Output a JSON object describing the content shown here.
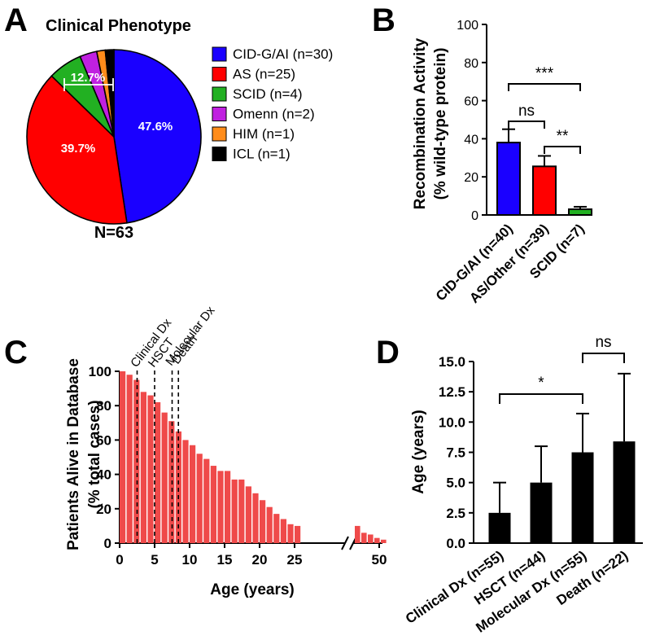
{
  "panel_labels": [
    "A",
    "B",
    "C",
    "D"
  ],
  "chart_data": [
    {
      "panel": "A",
      "type": "pie",
      "title": "Clinical Phenotype",
      "total_label": "N=63",
      "slices": [
        {
          "label": "CID-G/AI (n=30)",
          "value": 30,
          "color": "#1a00ff",
          "pct_label": "47.6%"
        },
        {
          "label": "AS (n=25)",
          "value": 25,
          "color": "#ff0000",
          "pct_label": "39.7%"
        },
        {
          "label": "SCID (n=4)",
          "value": 4,
          "color": "#22b022",
          "pct_label": "12.7%"
        },
        {
          "label": "Omenn (n=2)",
          "value": 2,
          "color": "#c020e0",
          "pct_label": ""
        },
        {
          "label": "HIM (n=1)",
          "value": 1,
          "color": "#ff8c1a",
          "pct_label": ""
        },
        {
          "label": "ICL (n=1)",
          "value": 1,
          "color": "#000000",
          "pct_label": ""
        }
      ]
    },
    {
      "panel": "B",
      "type": "bar",
      "ylabel_line1": "Recombination Activity",
      "ylabel_line2": "(% wild-type protein)",
      "ylim": [
        0,
        100
      ],
      "yticks": [
        0,
        20,
        40,
        60,
        80,
        100
      ],
      "categories": [
        "CID-G/AI (n=40)",
        "AS/Other (n=39)",
        "SCID (n=7)"
      ],
      "values": [
        38,
        25.5,
        3
      ],
      "errors": [
        7,
        5.5,
        1.3
      ],
      "colors": [
        "#1a00ff",
        "#ff0000",
        "#22b022"
      ],
      "significance": [
        {
          "from": 0,
          "to": 1,
          "label": "ns"
        },
        {
          "from": 1,
          "to": 2,
          "label": "**"
        },
        {
          "from": 0,
          "to": 2,
          "label": "***"
        }
      ]
    },
    {
      "panel": "C",
      "type": "bar",
      "ylabel_line1": "Patients Alive in Database",
      "ylabel_line2": "(% total cases)",
      "xlabel": "Age (years)",
      "ylim": [
        0,
        100
      ],
      "yticks": [
        0,
        20,
        40,
        60,
        80,
        100
      ],
      "xticks": [
        "0",
        "5",
        "10",
        "15",
        "20",
        "25",
        "50"
      ],
      "bar_color": "#ef4a4a",
      "x": [
        0,
        1,
        2,
        3,
        4,
        5,
        6,
        7,
        8,
        9,
        10,
        11,
        12,
        13,
        14,
        15,
        16,
        17,
        18,
        19,
        20,
        21,
        22,
        23,
        24,
        25,
        45,
        46,
        47,
        48,
        49
      ],
      "values": [
        100,
        98,
        95,
        88,
        86,
        82,
        76,
        71,
        65,
        60,
        57,
        52,
        49,
        45,
        42,
        42,
        37,
        37,
        33,
        29,
        25,
        21,
        17,
        14,
        11,
        10,
        10,
        6,
        5,
        3,
        2
      ],
      "events": [
        {
          "label": "Clinical Dx",
          "x": 2.5
        },
        {
          "label": "HSCT",
          "x": 5.0
        },
        {
          "label": "Molecular Dx",
          "x": 7.5
        },
        {
          "label": "Death",
          "x": 8.4
        }
      ]
    },
    {
      "panel": "D",
      "type": "bar",
      "ylabel": "Age (years)",
      "ylim": [
        0,
        15
      ],
      "yticks": [
        "0.0",
        "2.5",
        "5.0",
        "7.5",
        "10.0",
        "12.5",
        "15.0"
      ],
      "categories": [
        "Clinical Dx (n=55)",
        "HSCT (n=44)",
        "Molecular Dx (n=55)",
        "Death (n=22)"
      ],
      "values": [
        2.5,
        5.0,
        7.5,
        8.4
      ],
      "errors": [
        2.5,
        3.0,
        3.2,
        5.6
      ],
      "bar_color": "#000000",
      "significance": [
        {
          "from": 0,
          "to": 2,
          "label": "*"
        },
        {
          "from": 2,
          "to": 3,
          "label": "ns"
        }
      ]
    }
  ]
}
